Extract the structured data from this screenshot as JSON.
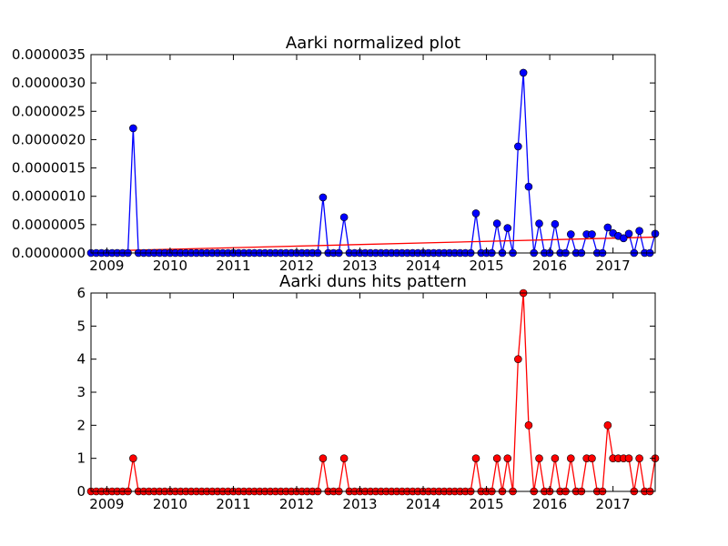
{
  "chart_data": [
    {
      "type": "line",
      "title": "Aarki normalized plot",
      "xlabel": "",
      "ylabel": "",
      "ylim": [
        0,
        3.5e-06
      ],
      "xlim": [
        "2008-10",
        "2017-09"
      ],
      "grid": false,
      "x_ticks": [
        "2009",
        "2010",
        "2011",
        "2012",
        "2013",
        "2014",
        "2015",
        "2016",
        "2017"
      ],
      "y_ticks": [
        "0.0000000",
        "0.0000005",
        "0.0000010",
        "0.0000015",
        "0.0000020",
        "0.0000025",
        "0.0000030",
        "0.0000035"
      ],
      "line_color": "#0000ff",
      "marker_color": "#0000ff",
      "trend_color": "#ff0000",
      "trend": {
        "start": 3e-08,
        "end": 2.8e-07
      },
      "spikes": [
        {
          "x": "2009-06",
          "y": 2.2e-06
        },
        {
          "x": "2012-06",
          "y": 9.8e-07
        },
        {
          "x": "2012-10",
          "y": 6.3e-07
        },
        {
          "x": "2014-11",
          "y": 7e-07
        },
        {
          "x": "2015-03",
          "y": 5.2e-07
        },
        {
          "x": "2015-05",
          "y": 4.4e-07
        },
        {
          "x": "2015-07",
          "y": 1.88e-06
        },
        {
          "x": "2015-08",
          "y": 3.18e-06
        },
        {
          "x": "2015-09",
          "y": 1.17e-06
        },
        {
          "x": "2015-11",
          "y": 5.2e-07
        },
        {
          "x": "2016-02",
          "y": 5.1e-07
        },
        {
          "x": "2016-05",
          "y": 3.3e-07
        },
        {
          "x": "2016-08",
          "y": 3.3e-07
        },
        {
          "x": "2016-09",
          "y": 3.3e-07
        },
        {
          "x": "2016-12",
          "y": 4.5e-07
        },
        {
          "x": "2017-01",
          "y": 3.5e-07
        },
        {
          "x": "2017-02",
          "y": 3e-07
        },
        {
          "x": "2017-03",
          "y": 2.6e-07
        },
        {
          "x": "2017-04",
          "y": 3.4e-07
        },
        {
          "x": "2017-06",
          "y": 3.9e-07
        },
        {
          "x": "2017-09",
          "y": 3.4e-07
        }
      ]
    },
    {
      "type": "line",
      "title": "Aarki duns hits pattern",
      "xlabel": "",
      "ylabel": "",
      "ylim": [
        0,
        6
      ],
      "xlim": [
        "2008-10",
        "2017-09"
      ],
      "grid": false,
      "x_ticks": [
        "2009",
        "2010",
        "2011",
        "2012",
        "2013",
        "2014",
        "2015",
        "2016",
        "2017"
      ],
      "y_ticks": [
        "0",
        "1",
        "2",
        "3",
        "4",
        "5",
        "6"
      ],
      "line_color": "#ff0000",
      "marker_color": "#ff0000",
      "spikes": [
        {
          "x": "2009-06",
          "y": 1
        },
        {
          "x": "2012-06",
          "y": 1
        },
        {
          "x": "2012-10",
          "y": 1
        },
        {
          "x": "2014-11",
          "y": 1
        },
        {
          "x": "2015-03",
          "y": 1
        },
        {
          "x": "2015-05",
          "y": 1
        },
        {
          "x": "2015-07",
          "y": 4
        },
        {
          "x": "2015-08",
          "y": 6
        },
        {
          "x": "2015-09",
          "y": 2
        },
        {
          "x": "2015-11",
          "y": 1
        },
        {
          "x": "2016-02",
          "y": 1
        },
        {
          "x": "2016-05",
          "y": 1
        },
        {
          "x": "2016-08",
          "y": 1
        },
        {
          "x": "2016-09",
          "y": 1
        },
        {
          "x": "2016-12",
          "y": 2
        },
        {
          "x": "2017-01",
          "y": 1
        },
        {
          "x": "2017-02",
          "y": 1
        },
        {
          "x": "2017-03",
          "y": 1
        },
        {
          "x": "2017-04",
          "y": 1
        },
        {
          "x": "2017-06",
          "y": 1
        },
        {
          "x": "2017-09",
          "y": 1
        }
      ]
    }
  ]
}
